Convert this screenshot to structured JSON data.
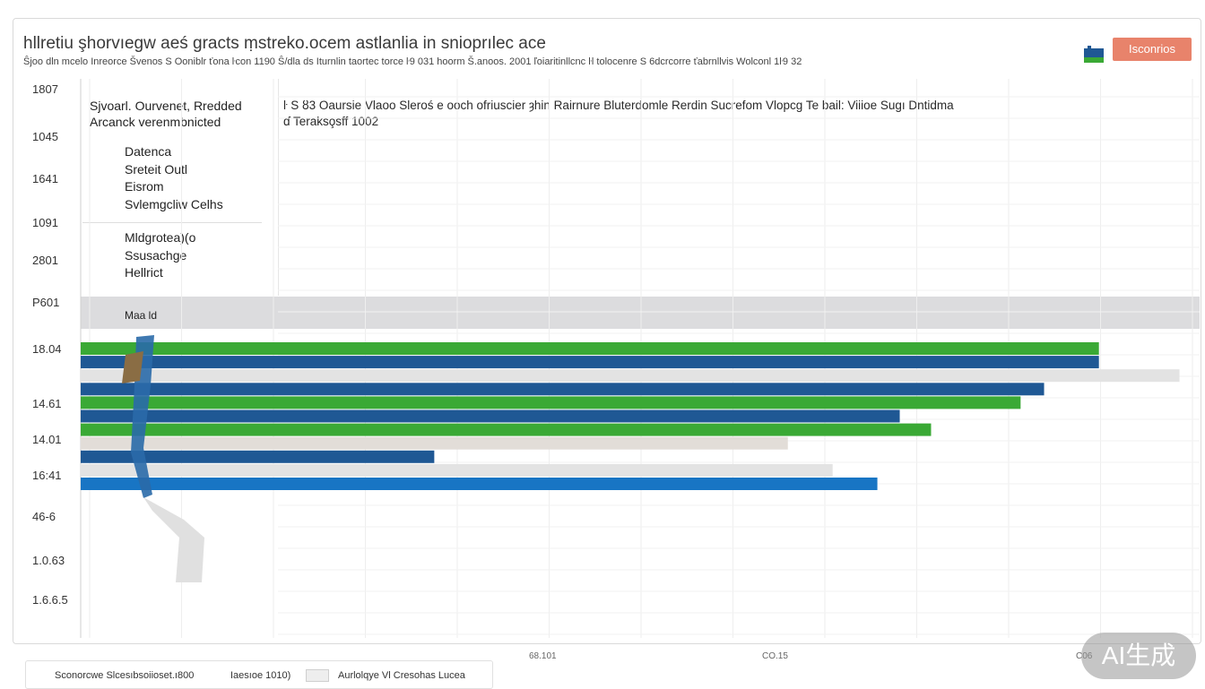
{
  "header": {
    "title": "hllretiu şhorvıegw aeś gracts ṃstreko.ocem astlanlia in snioprılec ace",
    "subtitle": "Ŝjoo dln mcelo Inreorce Švenos S Ooniblr ťona ŀcon 1190 Ŝ/dla ds Iturnlin taortec torce   ŀ9 031 hoorm Š.anoos. 2001 ľoiaritinllcnc ŀl tolocenre S 6dcrcorre ťabrnllvis Wolconl 1ŀ9 32",
    "logo_text": "Isconrios"
  },
  "legend_panel": {
    "heading": [
      "Sjvoarl. Ourvenet, Rredded",
      "Arcanck verenmbnicted"
    ],
    "group1": [
      "Datenca",
      "Sreteit Outl",
      "Eisrom",
      "Svlemgcliw Celhs"
    ],
    "group2": [
      "Mldgrotea)(o",
      "Ssusachge",
      "Hellrict"
    ]
  },
  "columns": {
    "header_line": "ŀ  S  ȣ3  Oaursie  Vlaoo  Sleroś  e ooch ofriuscier  ȝhin Rairnure   Bluterdomle  Rerdin  Sucrefom Vlopcg   Te bail:  Viiioe  Sugı Dntidma",
    "sub_line": "ɗ  Terakso̧sff 1002"
  },
  "band": {
    "label": "Maa ld"
  },
  "chart_data": {
    "type": "bar",
    "orientation": "horizontal",
    "title": "hllretiu şhorvıegw aeś gracts ṃstreko.ocem astlanlia in snioprılec ace",
    "xlabel": "",
    "ylabel": "",
    "xlim": [
      0,
      100
    ],
    "y_tick_labels": [
      "1807",
      "1045",
      "1641",
      "1091",
      "2801",
      "P601",
      "18.04",
      "14.61",
      "14.01",
      "16:41",
      "46-6",
      "1.0.63",
      "1.6.6.5"
    ],
    "x_tick_labels": [
      "68.101",
      "CO.15",
      "C06"
    ],
    "bars": [
      {
        "series": "green",
        "value": 91.0,
        "color": "#3aa935"
      },
      {
        "series": "navy",
        "value": 91.0,
        "color": "#1f5894"
      },
      {
        "series": "grey",
        "value": 98.2,
        "color": "#e3e3e3"
      },
      {
        "series": "navy",
        "value": 86.1,
        "color": "#1f5894"
      },
      {
        "series": "green",
        "value": 84.0,
        "color": "#3aa935"
      },
      {
        "series": "navy",
        "value": 73.2,
        "color": "#1f5894"
      },
      {
        "series": "green",
        "value": 76.0,
        "color": "#3aa935"
      },
      {
        "series": "beige",
        "value": 63.2,
        "color": "#e2ddd8"
      },
      {
        "series": "navy",
        "value": 31.6,
        "color": "#1f5894"
      },
      {
        "series": "grey",
        "value": 67.2,
        "color": "#e3e3e3"
      },
      {
        "series": "blue",
        "value": 71.2,
        "color": "#1875c4"
      }
    ],
    "legend": [
      "Sconorcwe Slcesıbsoiioset.ı800",
      "Iaesıoe 1010)",
      "Aurlolqye Vl Cresohas Lucea"
    ]
  },
  "footer": {
    "item1": "Sconorcwe Slcesıbsoiioset.ı800",
    "item2": "Iaesıoe 1010)",
    "item3": "Aurlolqye Vl Cresohas Lucea"
  },
  "watermark": "AI生成",
  "colors": {
    "green": "#3aa935",
    "navy": "#1f5894",
    "blue": "#1875c4",
    "grey": "#e3e3e3",
    "accent": "#e8836b"
  }
}
